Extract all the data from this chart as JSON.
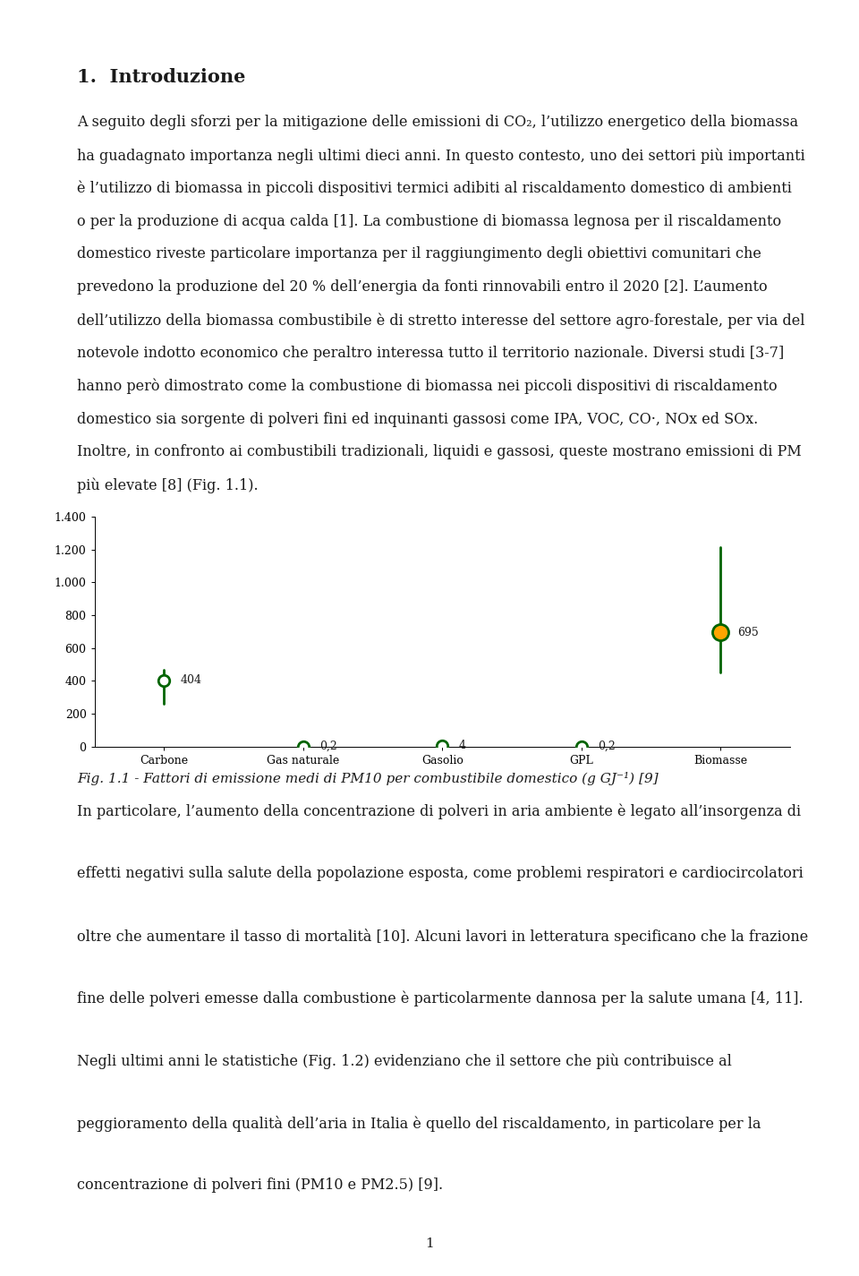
{
  "title": "1.  Introduzione",
  "para1_lines": [
    "A seguito degli sforzi per la mitigazione delle emissioni di CO₂, l’utilizzo energetico della biomassa",
    "ha guadagnato importanza negli ultimi dieci anni. In questo contesto, uno dei settori più importanti",
    "è l’utilizzo di biomassa in piccoli dispositivi termici adibiti al riscaldamento domestico di ambienti",
    "o per la produzione di acqua calda [1]. La combustione di biomassa legnosa per il riscaldamento",
    "domestico riveste particolare importanza per il raggiungimento degli obiettivi comunitari che",
    "prevedono la produzione del 20 % dell’energia da fonti rinnovabili entro il 2020 [2]. L’aumento",
    "dell’utilizzo della biomassa combustibile è di stretto interesse del settore agro-forestale, per via del",
    "notevole indotto economico che peraltro interessa tutto il territorio nazionale. Diversi studi [3-7]",
    "hanno però dimostrato come la combustione di biomassa nei piccoli dispositivi di riscaldamento",
    "domestico sia sorgente di polveri fini ed inquinanti gassosi come IPA, VOC, CO·, NOx ed SOx.",
    "Inoltre, in confronto ai combustibili tradizionali, liquidi e gassosi, queste mostrano emissioni di PM",
    "più elevate [8] (Fig. 1.1)."
  ],
  "para2_lines": [
    "In particolare, l’aumento della concentrazione di polveri in aria ambiente è legato all’insorgenza di",
    "effetti negativi sulla salute della popolazione esposta, come problemi respiratori e cardiocircolatori",
    "oltre che aumentare il tasso di mortalità [10]. Alcuni lavori in letteratura specificano che la frazione",
    "fine delle polveri emesse dalla combustione è particolarmente dannosa per la salute umana [4, 11].",
    "Negli ultimi anni le statistiche (Fig. 1.2) evidenziano che il settore che più contribuisce al",
    "peggioramento della qualità dell’aria in Italia è quello del riscaldamento, in particolare per la",
    "concentrazione di polveri fini (PM10 e PM2.5) [9]."
  ],
  "fig_caption": "Fig. 1.1 - Fattori di emissione medi di PM10 per combustibile domestico (g GJ⁻¹) [9]",
  "page_number": "1",
  "chart_categories": [
    "Carbone",
    "Gas naturale",
    "Gasolio",
    "GPL",
    "Biomasse"
  ],
  "chart_means": [
    404,
    0.2,
    4,
    0.2,
    695
  ],
  "chart_bar_bottom": [
    260,
    0.2,
    4,
    0.2,
    450
  ],
  "chart_bar_top": [
    465,
    0.2,
    4,
    0.2,
    1215
  ],
  "chart_marker_facecolors": [
    "white",
    "white",
    "white",
    "white",
    "orange"
  ],
  "chart_marker_edgecolor": "#006400",
  "chart_line_color": "#006400",
  "chart_ylim": [
    0,
    1400
  ],
  "chart_yticks": [
    0,
    200,
    400,
    600,
    800,
    1000,
    1200,
    1400
  ],
  "chart_ytick_labels": [
    "0",
    "200",
    "400",
    "600",
    "800",
    "1.000",
    "1.200",
    "1.400"
  ],
  "chart_value_labels": [
    "404",
    "0,2",
    "4",
    "0,2",
    "695"
  ],
  "background_color": "#ffffff",
  "text_color": "#1a1a1a",
  "font_size_title": 15,
  "font_size_body": 11.5,
  "font_size_axis": 9,
  "font_size_caption": 11
}
